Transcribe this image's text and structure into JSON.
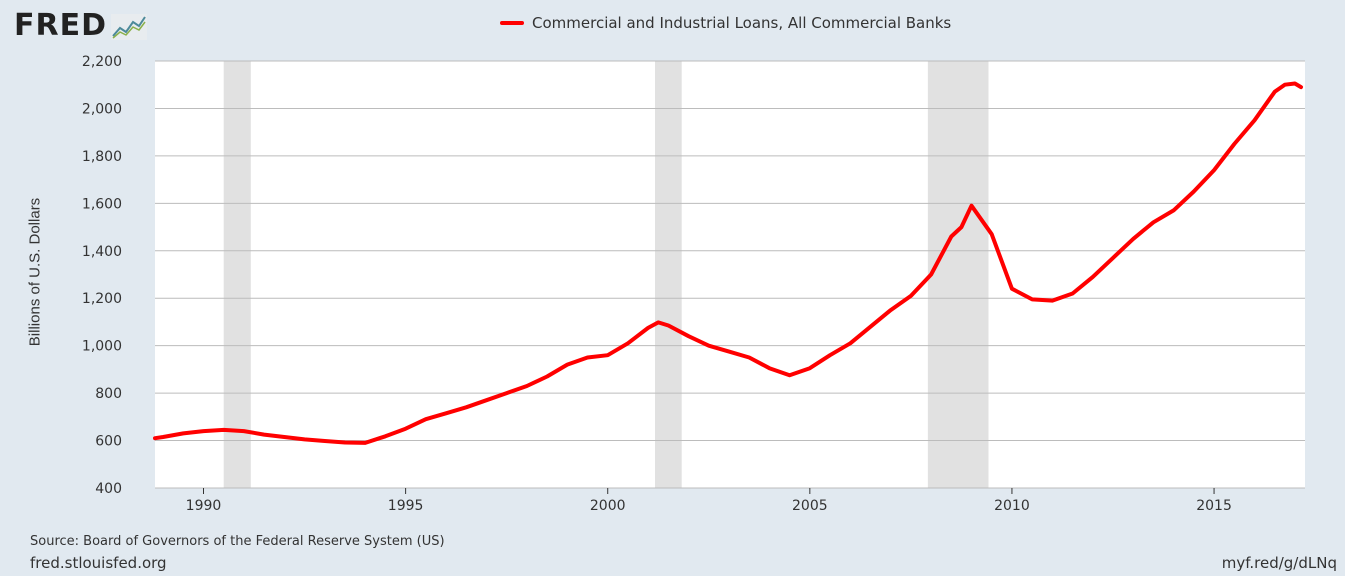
{
  "header": {
    "logo_text": "FRED",
    "logo_icon": "line-chart-icon"
  },
  "footer": {
    "source": "Source: Board of Governors of the Federal Reserve System (US)",
    "site": "fred.stlouisfed.org",
    "shortlink": "myf.red/g/dLNq"
  },
  "chart_data": {
    "type": "line",
    "title": "",
    "xlabel": "",
    "ylabel": "Billions of U.S. Dollars",
    "xlim": [
      1988.8,
      2017.25
    ],
    "ylim": [
      400,
      2200
    ],
    "x_ticks": [
      1990,
      1995,
      2000,
      2005,
      2010,
      2015
    ],
    "y_ticks": [
      400,
      600,
      800,
      1000,
      1200,
      1400,
      1600,
      1800,
      2000,
      2200
    ],
    "y_tick_labels": [
      "400",
      "600",
      "800",
      "1,000",
      "1,200",
      "1,400",
      "1,600",
      "1,800",
      "2,000",
      "2,200"
    ],
    "grid": "horizontal",
    "legend": "top",
    "recessions": [
      [
        1990.5,
        1991.17
      ],
      [
        2001.17,
        2001.83
      ],
      [
        2007.92,
        2009.42
      ]
    ],
    "colors": {
      "series": "#ff0000",
      "recession": "#e1e1e1",
      "grid": "#bcbcbc",
      "background": "#e1e9f0",
      "plot": "#ffffff"
    },
    "series": [
      {
        "name": "Commercial and Industrial Loans, All Commercial Banks",
        "x": [
          1988.8,
          1989.0,
          1989.5,
          1990.0,
          1990.5,
          1991.0,
          1991.5,
          1992.0,
          1992.5,
          1993.0,
          1993.5,
          1994.0,
          1994.5,
          1995.0,
          1995.5,
          1996.0,
          1996.5,
          1997.0,
          1997.5,
          1998.0,
          1998.5,
          1999.0,
          1999.5,
          2000.0,
          2000.5,
          2001.0,
          2001.25,
          2001.5,
          2002.0,
          2002.5,
          2003.0,
          2003.5,
          2004.0,
          2004.5,
          2005.0,
          2005.5,
          2006.0,
          2006.5,
          2007.0,
          2007.5,
          2008.0,
          2008.5,
          2008.75,
          2009.0,
          2009.5,
          2010.0,
          2010.5,
          2011.0,
          2011.5,
          2012.0,
          2012.5,
          2013.0,
          2013.5,
          2014.0,
          2014.5,
          2015.0,
          2015.5,
          2016.0,
          2016.5,
          2016.75,
          2017.0,
          2017.15
        ],
        "values": [
          610,
          615,
          630,
          640,
          645,
          640,
          625,
          615,
          605,
          598,
          592,
          590,
          618,
          650,
          690,
          715,
          740,
          770,
          800,
          830,
          870,
          920,
          950,
          960,
          1010,
          1075,
          1098,
          1085,
          1040,
          1000,
          975,
          950,
          905,
          875,
          905,
          960,
          1010,
          1080,
          1150,
          1210,
          1300,
          1460,
          1500,
          1590,
          1470,
          1240,
          1195,
          1190,
          1220,
          1290,
          1370,
          1450,
          1520,
          1570,
          1650,
          1740,
          1850,
          1950,
          2070,
          2100,
          2105,
          2090
        ]
      }
    ]
  }
}
